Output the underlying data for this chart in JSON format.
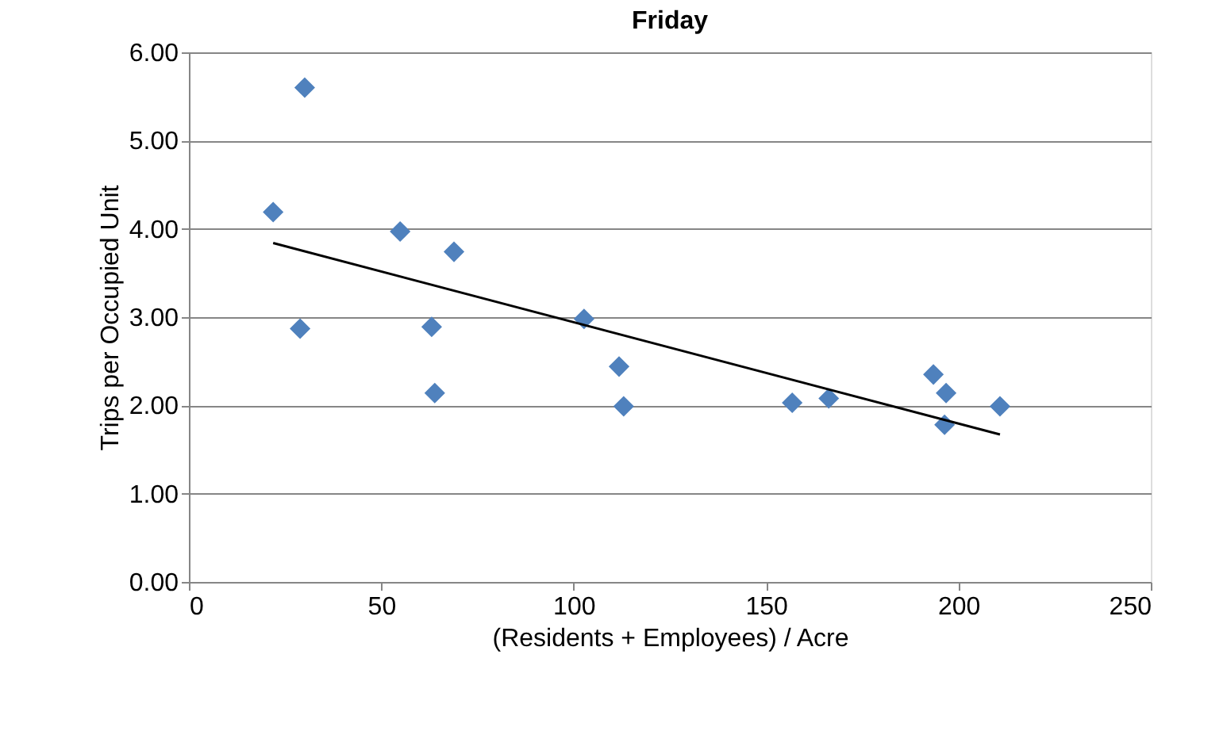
{
  "chart_data": {
    "type": "scatter",
    "title": "Friday",
    "xlabel": "(Residents + Employees) / Acre",
    "ylabel": "Trips per  Occupied Unit",
    "xlim": [
      0,
      250
    ],
    "xticks": [
      0,
      50,
      100,
      150,
      200,
      250
    ],
    "ylim": [
      0,
      6
    ],
    "yticks": [
      {
        "value": 0,
        "label": "0.00"
      },
      {
        "value": 1,
        "label": "1.00"
      },
      {
        "value": 2,
        "label": "2.00"
      },
      {
        "value": 3,
        "label": "3.00"
      },
      {
        "value": 4,
        "label": "4.00"
      },
      {
        "value": 5,
        "label": "5.00"
      },
      {
        "value": 6,
        "label": "6.00"
      }
    ],
    "grid": "y",
    "marker": "diamond",
    "legend": false,
    "series": [
      {
        "color": "#4f81bd",
        "x": [
          21.9,
          30.1,
          28.9,
          54.9,
          68.9,
          63.1,
          63.9,
          102.7,
          111.8,
          113,
          156.8,
          166.3,
          193.5,
          196.8,
          196.4,
          210.8
        ],
        "values": [
          4.19,
          5.6,
          2.87,
          3.97,
          3.74,
          2.89,
          2.14,
          2.98,
          2.44,
          1.99,
          2.03,
          2.08,
          2.35,
          2.14,
          1.78,
          1.99
        ]
      },
      {
        "type": "line",
        "marker": "none",
        "color": "#000000",
        "x": [
          21.9,
          210.8
        ],
        "values": [
          3.84,
          1.67
        ]
      }
    ]
  }
}
